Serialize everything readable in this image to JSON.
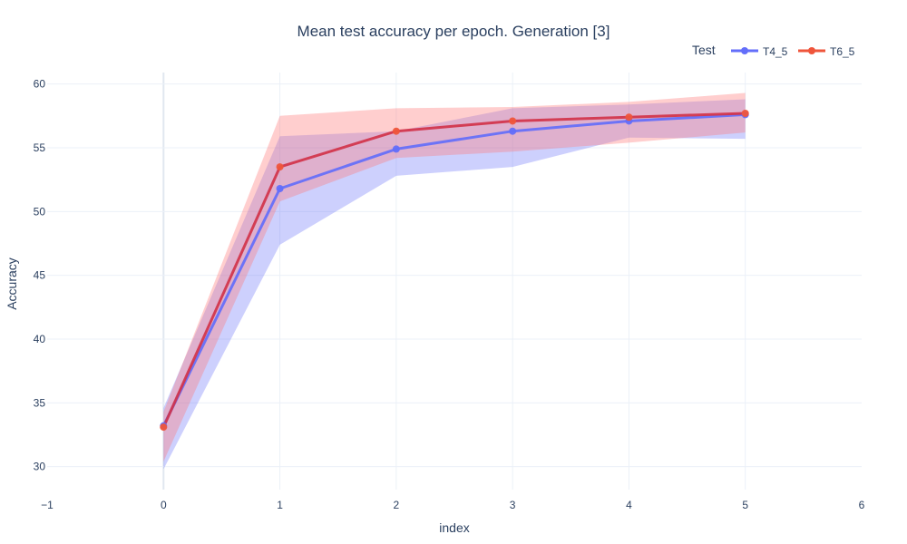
{
  "chart_data": {
    "type": "line",
    "title": "Mean test accuracy per epoch. Generation [3]",
    "xlabel": "index",
    "ylabel": "Accuracy",
    "xlim": [
      -1,
      6
    ],
    "ylim": [
      28.2,
      60.9
    ],
    "x_ticks": [
      -1,
      0,
      1,
      2,
      3,
      4,
      5,
      6
    ],
    "y_ticks": [
      30,
      35,
      40,
      45,
      50,
      55,
      60
    ],
    "grid": true,
    "legend": {
      "title": "Test",
      "position": "top-right",
      "orientation": "horizontal"
    },
    "x": [
      0,
      1,
      2,
      3,
      4,
      5
    ],
    "series": [
      {
        "name": "T4_5",
        "color": "#636efa",
        "band_color": "rgba(99,110,250,0.32)",
        "values": [
          33.2,
          51.8,
          54.9,
          56.3,
          57.1,
          57.6
        ],
        "upper": [
          34.6,
          55.9,
          56.3,
          58.1,
          58.4,
          58.8
        ],
        "lower": [
          29.8,
          47.4,
          52.8,
          53.5,
          55.8,
          55.7
        ]
      },
      {
        "name": "T6_5",
        "color": "#EF553B",
        "line_color": "#d1334a",
        "band_color": "rgba(255,120,120,0.36)",
        "values": [
          33.1,
          53.5,
          56.3,
          57.1,
          57.4,
          57.7
        ],
        "upper": [
          34.3,
          57.5,
          58.1,
          58.2,
          58.6,
          59.3
        ],
        "lower": [
          30.4,
          50.8,
          54.2,
          54.7,
          55.4,
          56.2
        ]
      }
    ]
  }
}
